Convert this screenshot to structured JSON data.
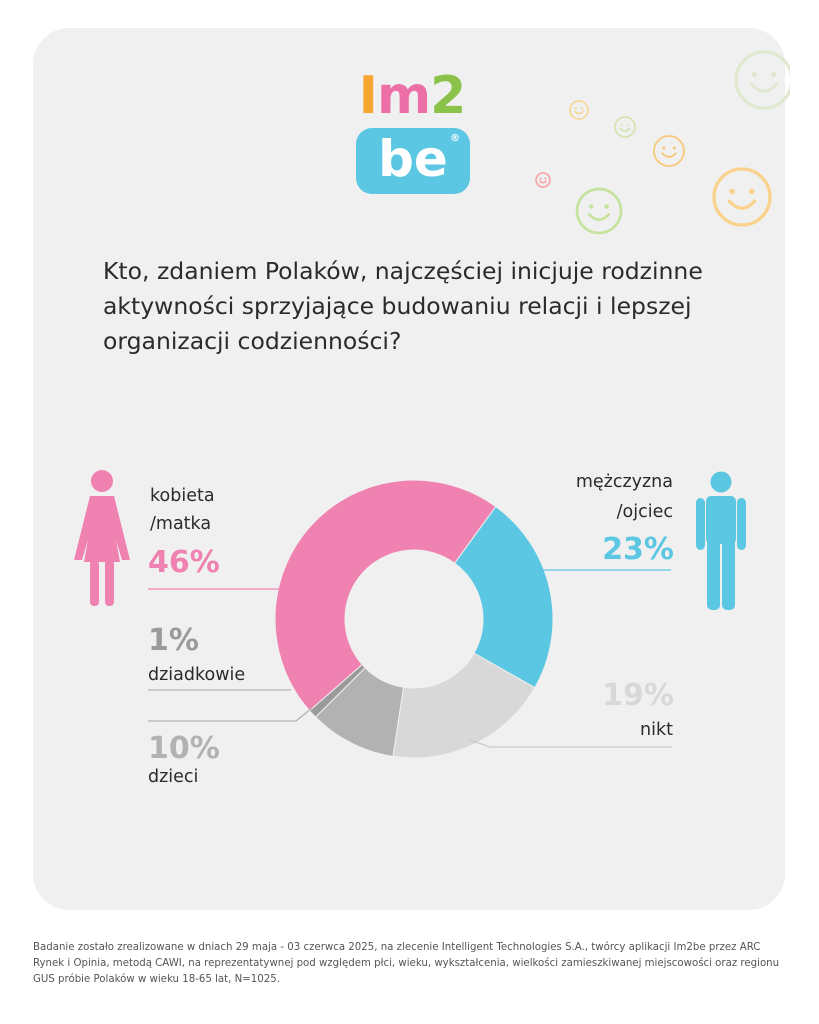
{
  "logo": {
    "line1": [
      "I",
      "m",
      "2"
    ],
    "line2": "be",
    "registered": "®"
  },
  "question": "Kto, zdaniem Polaków, najczęściej inicjuje rodzinne aktywności sprzyjające budowaniu relacji i lepszej organizacji codzienności?",
  "icons": {
    "woman": "woman-icon",
    "man": "man-icon",
    "decoration": "smiley-face-icon"
  },
  "chart_data": {
    "type": "pie",
    "donut": true,
    "title": "Kto, zdaniem Polaków, najczęściej inicjuje rodzinne aktywności sprzyjające budowaniu relacji i lepszej organizacji codzienności?",
    "unit": "%",
    "slices": [
      {
        "label_lines": [
          "mężczyzna",
          "/ojciec"
        ],
        "value": 23,
        "value_label": "23%",
        "color": "#5bc7e2"
      },
      {
        "label_lines": [
          "nikt"
        ],
        "value": 19,
        "value_label": "19%",
        "color": "#d8d8d8"
      },
      {
        "label_lines": [
          "dzieci"
        ],
        "value": 10,
        "value_label": "10%",
        "color": "#b2b2b2"
      },
      {
        "label_lines": [
          "dziadkowie"
        ],
        "value": 1,
        "value_label": "1%",
        "color": "#9a9a9a"
      },
      {
        "label_lines": [
          "kobieta",
          "/matka"
        ],
        "value": 46,
        "value_label": "46%",
        "color": "#ef82b1"
      }
    ]
  },
  "footnote": "Badanie zostało zrealizowane w dniach 29 maja - 03 czerwca 2025, na zlecenie Intelligent Technologies S.A., twórcy aplikacji Im2be przez ARC Rynek i Opinia, metodą CAWI, na reprezentatywnej pod względem płci, wieku, wykształcenia, wielkości zamieszkiwanej miejscowości oraz regionu GUS próbie Polaków w wieku 18-65 lat, N=1025."
}
